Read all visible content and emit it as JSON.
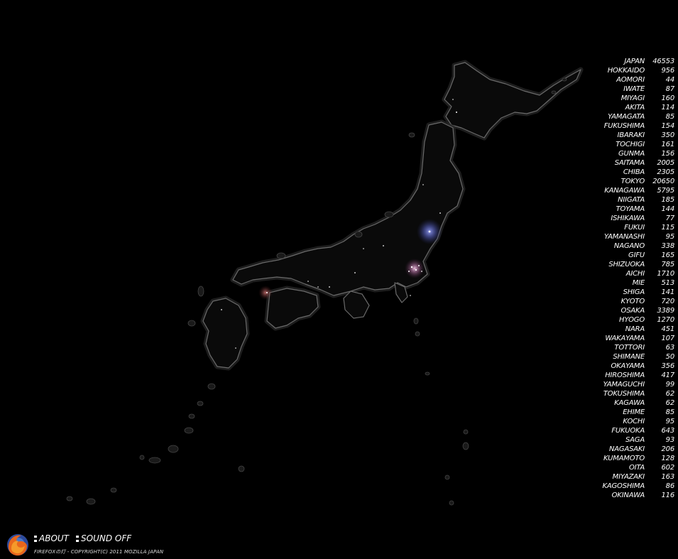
{
  "stats": [
    {
      "name": "JAPAN",
      "count": "46553"
    },
    {
      "name": "HOKKAIDO",
      "count": "956"
    },
    {
      "name": "AOMORI",
      "count": "44"
    },
    {
      "name": "IWATE",
      "count": "87"
    },
    {
      "name": "MIYAGI",
      "count": "160"
    },
    {
      "name": "AKITA",
      "count": "114"
    },
    {
      "name": "YAMAGATA",
      "count": "85"
    },
    {
      "name": "FUKUSHIMA",
      "count": "154"
    },
    {
      "name": "IBARAKI",
      "count": "350"
    },
    {
      "name": "TOCHIGI",
      "count": "161"
    },
    {
      "name": "GUNMA",
      "count": "156"
    },
    {
      "name": "SAITAMA",
      "count": "2005"
    },
    {
      "name": "CHIBA",
      "count": "2305"
    },
    {
      "name": "TOKYO",
      "count": "20650"
    },
    {
      "name": "KANAGAWA",
      "count": "5795"
    },
    {
      "name": "NIIGATA",
      "count": "185"
    },
    {
      "name": "TOYAMA",
      "count": "144"
    },
    {
      "name": "ISHIKAWA",
      "count": "77"
    },
    {
      "name": "FUKUI",
      "count": "115"
    },
    {
      "name": "YAMANASHI",
      "count": "95"
    },
    {
      "name": "NAGANO",
      "count": "338"
    },
    {
      "name": "GIFU",
      "count": "165"
    },
    {
      "name": "SHIZUOKA",
      "count": "785"
    },
    {
      "name": "AICHI",
      "count": "1710"
    },
    {
      "name": "MIE",
      "count": "513"
    },
    {
      "name": "SHIGA",
      "count": "141"
    },
    {
      "name": "KYOTO",
      "count": "720"
    },
    {
      "name": "OSAKA",
      "count": "3389"
    },
    {
      "name": "HYOGO",
      "count": "1270"
    },
    {
      "name": "NARA",
      "count": "451"
    },
    {
      "name": "WAKAYAMA",
      "count": "107"
    },
    {
      "name": "TOTTORI",
      "count": "63"
    },
    {
      "name": "SHIMANE",
      "count": "50"
    },
    {
      "name": "OKAYAMA",
      "count": "356"
    },
    {
      "name": "HIROSHIMA",
      "count": "417"
    },
    {
      "name": "YAMAGUCHI",
      "count": "99"
    },
    {
      "name": "TOKUSHIMA",
      "count": "62"
    },
    {
      "name": "KAGAWA",
      "count": "62"
    },
    {
      "name": "EHIME",
      "count": "85"
    },
    {
      "name": "KOCHI",
      "count": "95"
    },
    {
      "name": "FUKUOKA",
      "count": "643"
    },
    {
      "name": "SAGA",
      "count": "93"
    },
    {
      "name": "NAGASAKI",
      "count": "206"
    },
    {
      "name": "KUMAMOTO",
      "count": "128"
    },
    {
      "name": "OITA",
      "count": "602"
    },
    {
      "name": "MIYAZAKI",
      "count": "163"
    },
    {
      "name": "KAGOSHIMA",
      "count": "86"
    },
    {
      "name": "OKINAWA",
      "count": "116"
    }
  ],
  "footer": {
    "about_label": "ABOUT",
    "sound_label": "SOUND OFF",
    "copyright": "FIREFOXの灯 - COPYRIGHT(C) 2011 MOZILLA JAPAN"
  },
  "logo": {
    "icon": "firefox-logo-icon"
  },
  "colors": {
    "background": "#000000",
    "coast": "#6a6a6a",
    "text": "#ffffff",
    "glow_blue": "#5a64c8",
    "glow_pink": "#c87ab4"
  }
}
